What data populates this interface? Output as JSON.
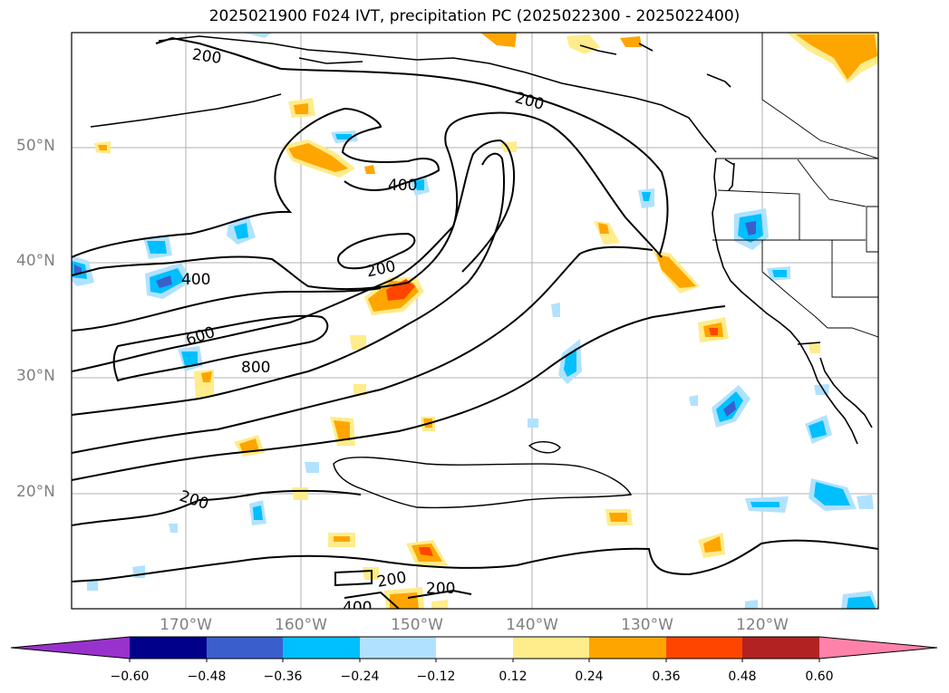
{
  "title": "2025021900 F024 IVT, precipitation PC (2025022300 - 2025022400)",
  "latitude_labels": [
    "50°N",
    "40°N",
    "30°N",
    "20°N"
  ],
  "longitude_labels": [
    "170°W",
    "160°W",
    "150°W",
    "140°W",
    "130°W",
    "120°W"
  ],
  "contour_labels": [
    "200",
    "200",
    "200",
    "400",
    "400",
    "600",
    "800",
    "200",
    "200",
    "200",
    "400"
  ],
  "colorbar": {
    "tick_labels": [
      "−0.60",
      "−0.48",
      "−0.36",
      "−0.24",
      "−0.12",
      "0.12",
      "0.24",
      "0.36",
      "0.48",
      "0.60"
    ],
    "colors": [
      "#9932cc",
      "#00008b",
      "#3a5fcd",
      "#00bfff",
      "#b0e2ff",
      "#ffffff",
      "#ffec8b",
      "#ffa500",
      "#ff4500",
      "#b22222",
      "#ff82ab"
    ]
  }
}
